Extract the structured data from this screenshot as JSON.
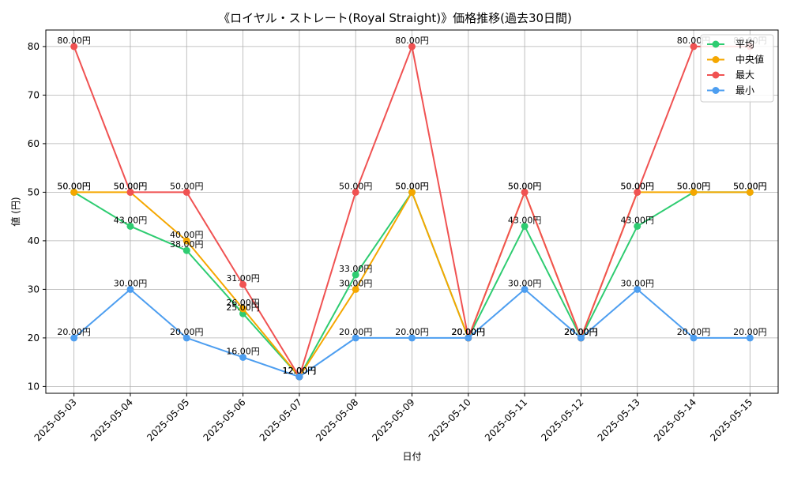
{
  "chart_data": {
    "type": "line",
    "title": "《ロイヤル・ストレート(Royal Straight)》価格推移(過去30日間)",
    "xlabel": "日付",
    "ylabel": "値 (円)",
    "categories": [
      "2025-05-03",
      "2025-05-04",
      "2025-05-05",
      "2025-05-06",
      "2025-05-07",
      "2025-05-08",
      "2025-05-09",
      "2025-05-10",
      "2025-05-11",
      "2025-05-12",
      "2025-05-13",
      "2025-05-14",
      "2025-05-15"
    ],
    "ylim": [
      8.6,
      83.4
    ],
    "yticks": [
      10,
      20,
      30,
      40,
      50,
      60,
      70,
      80
    ],
    "grid": true,
    "legend_position": "top-right",
    "value_suffix": "円",
    "series": [
      {
        "name": "平均",
        "color": "#2ecc71",
        "values": [
          50,
          43,
          38,
          25,
          12,
          33,
          50,
          20,
          43,
          20,
          43,
          50,
          50
        ]
      },
      {
        "name": "中央値",
        "color": "#f5a700",
        "values": [
          50,
          50,
          40,
          26,
          12,
          30,
          50,
          20,
          50,
          20,
          50,
          50,
          50
        ]
      },
      {
        "name": "最大",
        "color": "#f05252",
        "values": [
          80,
          50,
          50,
          31,
          12,
          50,
          80,
          20,
          50,
          20,
          50,
          80,
          80
        ]
      },
      {
        "name": "最小",
        "color": "#4d9ef0",
        "values": [
          20,
          30,
          20,
          16,
          12,
          20,
          20,
          20,
          30,
          20,
          30,
          20,
          20
        ]
      }
    ]
  }
}
